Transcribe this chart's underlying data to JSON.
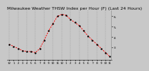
{
  "title": "Milwaukee Weather THSW Index per Hour (F) (Last 24 Hours)",
  "hours": [
    0,
    1,
    2,
    3,
    4,
    5,
    6,
    7,
    8,
    9,
    10,
    11,
    12,
    13,
    14,
    15,
    16,
    17,
    18,
    19,
    20,
    21,
    22,
    23
  ],
  "values": [
    33,
    31,
    29,
    27,
    26,
    26,
    25,
    29,
    37,
    46,
    53,
    60,
    62,
    61,
    57,
    54,
    51,
    46,
    41,
    37,
    33,
    29,
    25,
    21
  ],
  "line_color": "#ff0000",
  "marker_color": "#000000",
  "background_color": "#c8c8c8",
  "grid_color": "#888888",
  "ylim": [
    18,
    66
  ],
  "yticks_right": [
    30,
    40,
    50,
    60
  ],
  "ytick_labels": [
    "3.",
    "4.",
    "5.",
    "6."
  ],
  "title_fontsize": 4.5,
  "tick_fontsize": 3.2,
  "line_width": 0.7,
  "marker_size": 1.6,
  "xlabel_hours": [
    "12",
    "1",
    "2",
    "3",
    "4",
    "5",
    "6",
    "7",
    "8",
    "9",
    "10",
    "11",
    "12",
    "1",
    "2",
    "3",
    "4",
    "5",
    "6",
    "7",
    "8",
    "9",
    "10",
    "11"
  ]
}
